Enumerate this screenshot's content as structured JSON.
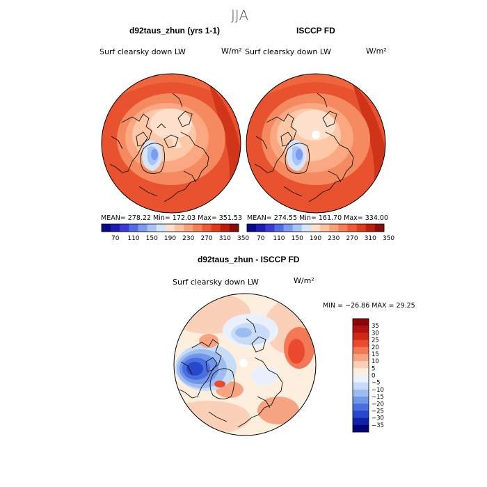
{
  "figure": {
    "season": "JJA",
    "colors": {
      "pole_white": "#ffffff",
      "land_outline": "#111111",
      "frame": "#000000"
    }
  },
  "abs_scale": {
    "colors": [
      "#08088a",
      "#1c1cb4",
      "#3a3ad6",
      "#4f6ee6",
      "#7b9cf0",
      "#a8c4f6",
      "#d6e4fa",
      "#fde0cc",
      "#fcc3a0",
      "#f9a27a",
      "#f57f55",
      "#ef5a34",
      "#e03a1c",
      "#bd1e0c",
      "#8b0c06"
    ],
    "ticks": [
      "70",
      "110",
      "150",
      "190",
      "230",
      "270",
      "310",
      "350"
    ]
  },
  "diff_scale": {
    "colors": [
      "#8b0606",
      "#b01212",
      "#d02818",
      "#ea4a2e",
      "#f27856",
      "#f6a482",
      "#fbd0b8",
      "#fdeede",
      "#eaf0fc",
      "#c8dcf8",
      "#9cbcf2",
      "#7096ea",
      "#4a6ee0",
      "#2848cc",
      "#1022a6",
      "#02037a"
    ],
    "ticks": [
      "35",
      "30",
      "25",
      "20",
      "15",
      "10",
      "5",
      "0",
      "−5",
      "−10",
      "−15",
      "−20",
      "−25",
      "−30",
      "−35"
    ]
  },
  "panels": {
    "left": {
      "title": "d92taus_zhun (yrs 1-1)",
      "subtitle": "Surf clearsky down LW",
      "units": "W/m²",
      "stats": "MEAN= 278.22   Min= 172.03   Max= 351.53"
    },
    "right": {
      "title": "ISCCP FD",
      "subtitle": "Surf clearsky down LW",
      "units": "W/m²",
      "stats": "MEAN= 274.55   Min= 161.70   Max= 334.00"
    },
    "diff": {
      "title": "d92taus_zhun - ISCCP FD",
      "subtitle": "Surf clearsky down LW",
      "units": "W/m²",
      "minmax": "MIN = −26.86  MAX =  29.25"
    }
  }
}
